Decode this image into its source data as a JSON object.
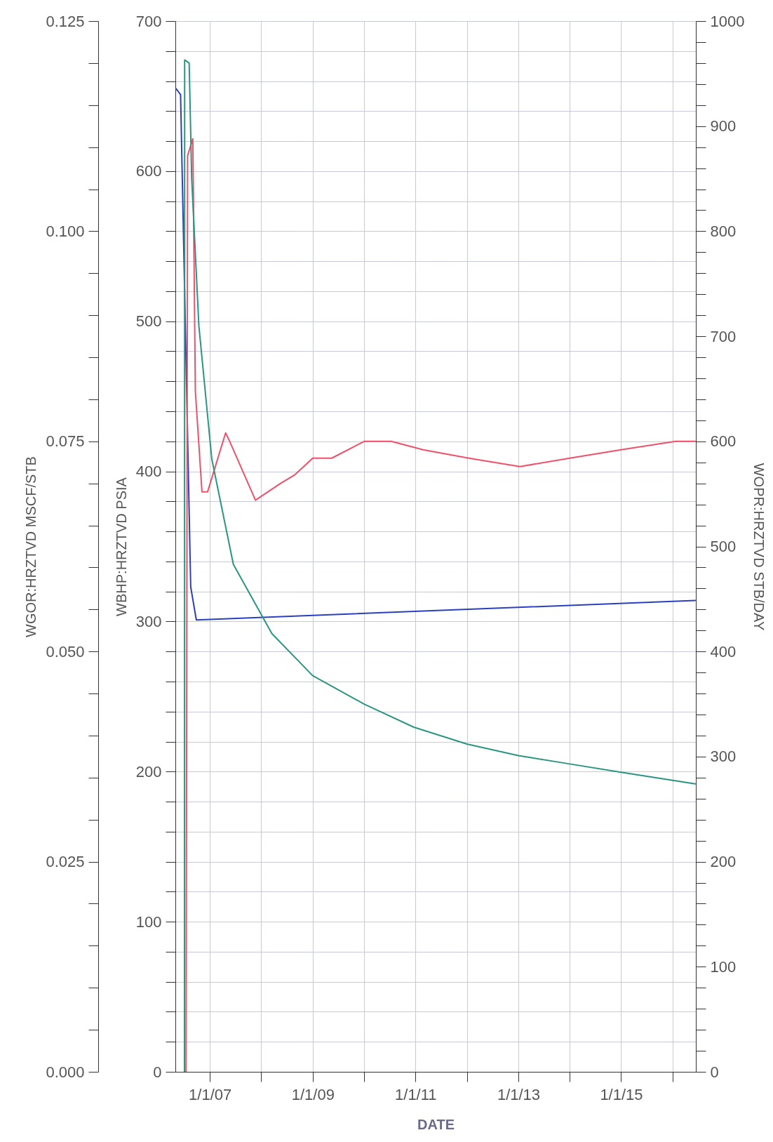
{
  "chart_data": {
    "type": "line",
    "xlabel": "DATE",
    "ylabel": "WBHP:HRZTVD PSIA",
    "y2label": "WGOR:HRZTVD MSCF/STB",
    "y3label": "WOPR:HRZTVD STB/DAY",
    "grid": true,
    "xlim": [
      "2006-05-01",
      "2016-06-15"
    ],
    "xticks": [
      {
        "value": "2007-01-01",
        "label": "1/1/07"
      },
      {
        "value": "2008-01-01",
        "label": null
      },
      {
        "value": "2009-01-01",
        "label": "1/1/09"
      },
      {
        "value": "2010-01-01",
        "label": null
      },
      {
        "value": "2011-01-01",
        "label": "1/1/11"
      },
      {
        "value": "2012-01-01",
        "label": null
      },
      {
        "value": "2013-01-01",
        "label": "1/1/13"
      },
      {
        "value": "2014-01-01",
        "label": null
      },
      {
        "value": "2015-01-01",
        "label": "1/1/15"
      },
      {
        "value": "2016-01-01",
        "label": null
      }
    ],
    "ylim": [
      0,
      700
    ],
    "yticks": [
      0,
      {
        "value": 20,
        "label": null
      },
      {
        "value": 40,
        "label": null
      },
      {
        "value": 60,
        "label": null
      },
      {
        "value": 80,
        "label": null
      },
      100,
      {
        "value": 120,
        "label": null
      },
      {
        "value": 140,
        "label": null
      },
      {
        "value": 160,
        "label": null
      },
      {
        "value": 180,
        "label": null
      },
      200,
      {
        "value": 220,
        "label": null
      },
      {
        "value": 240,
        "label": null
      },
      {
        "value": 260,
        "label": null
      },
      {
        "value": 280,
        "label": null
      },
      300,
      {
        "value": 320,
        "label": null
      },
      {
        "value": 340,
        "label": null
      },
      {
        "value": 360,
        "label": null
      },
      {
        "value": 380,
        "label": null
      },
      400,
      {
        "value": 420,
        "label": null
      },
      {
        "value": 440,
        "label": null
      },
      {
        "value": 460,
        "label": null
      },
      {
        "value": 480,
        "label": null
      },
      500,
      {
        "value": 520,
        "label": null
      },
      {
        "value": 540,
        "label": null
      },
      {
        "value": 560,
        "label": null
      },
      {
        "value": 580,
        "label": null
      },
      600,
      {
        "value": 620,
        "label": null
      },
      {
        "value": 640,
        "label": null
      },
      {
        "value": 660,
        "label": null
      },
      {
        "value": 680,
        "label": null
      },
      700
    ],
    "y2lim": [
      0,
      0.125
    ],
    "y2ticks": [
      {
        "value": 0,
        "label": "0.000"
      },
      {
        "value": 0.005,
        "label": null
      },
      {
        "value": 0.01,
        "label": null
      },
      {
        "value": 0.015,
        "label": null
      },
      {
        "value": 0.02,
        "label": null
      },
      0.025,
      {
        "value": 0.03,
        "label": null
      },
      {
        "value": 0.035,
        "label": null
      },
      {
        "value": 0.04,
        "label": null
      },
      {
        "value": 0.045,
        "label": null
      },
      {
        "value": 0.05,
        "label": "0.050"
      },
      {
        "value": 0.055,
        "label": null
      },
      {
        "value": 0.06,
        "label": null
      },
      {
        "value": 0.065,
        "label": null
      },
      {
        "value": 0.07,
        "label": null
      },
      0.075,
      {
        "value": 0.08,
        "label": null
      },
      {
        "value": 0.085,
        "label": null
      },
      {
        "value": 0.09,
        "label": null
      },
      {
        "value": 0.095,
        "label": null
      },
      {
        "value": 0.1,
        "label": "0.100"
      },
      {
        "value": 0.105,
        "label": null
      },
      {
        "value": 0.11,
        "label": null
      },
      {
        "value": 0.115,
        "label": null
      },
      {
        "value": 0.12,
        "label": null
      },
      0.125
    ],
    "y3lim": [
      0,
      1000
    ],
    "y3ticks": [
      0,
      {
        "value": 20,
        "label": null
      },
      {
        "value": 40,
        "label": null
      },
      {
        "value": 60,
        "label": null
      },
      {
        "value": 80,
        "label": null
      },
      100,
      {
        "value": 120,
        "label": null
      },
      {
        "value": 140,
        "label": null
      },
      {
        "value": 160,
        "label": null
      },
      {
        "value": 180,
        "label": null
      },
      200,
      {
        "value": 220,
        "label": null
      },
      {
        "value": 240,
        "label": null
      },
      {
        "value": 260,
        "label": null
      },
      {
        "value": 280,
        "label": null
      },
      300,
      {
        "value": 320,
        "label": null
      },
      {
        "value": 340,
        "label": null
      },
      {
        "value": 360,
        "label": null
      },
      {
        "value": 380,
        "label": null
      },
      400,
      {
        "value": 420,
        "label": null
      },
      {
        "value": 440,
        "label": null
      },
      {
        "value": 460,
        "label": null
      },
      {
        "value": 480,
        "label": null
      },
      500,
      {
        "value": 520,
        "label": null
      },
      {
        "value": 540,
        "label": null
      },
      {
        "value": 560,
        "label": null
      },
      {
        "value": 580,
        "label": null
      },
      600,
      {
        "value": 620,
        "label": null
      },
      {
        "value": 640,
        "label": null
      },
      {
        "value": 660,
        "label": null
      },
      {
        "value": 680,
        "label": null
      },
      700,
      {
        "value": 720,
        "label": null
      },
      {
        "value": 740,
        "label": null
      },
      {
        "value": 760,
        "label": null
      },
      {
        "value": 780,
        "label": null
      },
      800,
      {
        "value": 820,
        "label": null
      },
      {
        "value": 840,
        "label": null
      },
      {
        "value": 860,
        "label": null
      },
      {
        "value": 880,
        "label": null
      },
      900,
      {
        "value": 920,
        "label": null
      },
      {
        "value": 940,
        "label": null
      },
      {
        "value": 960,
        "label": null
      },
      {
        "value": 980,
        "label": null
      },
      1000
    ],
    "series": [
      {
        "color": "#2b40c0",
        "x": [
          "2006-05-05",
          "2006-06-07",
          "2006-08-18",
          "2006-09-27",
          "2016-06-10"
        ],
        "values": [
          655,
          651,
          323,
          301,
          314
        ]
      },
      {
        "color": "#f0506a",
        "axis": "y2",
        "x": [
          "2006-07-16",
          "2006-07-27",
          "2006-09-02",
          "2006-09-20",
          "2006-11-06",
          "2006-12-16",
          "2007-04-23",
          "2007-05-22",
          "2007-11-21",
          "2008-05-18",
          "2008-08-25",
          "2009-01-01",
          "2009-05-16",
          "2010-01-01",
          "2010-07-13",
          "2011-02-24",
          "2012-01-15",
          "2013-01-12",
          "2014-01-01",
          "2015-01-01",
          "2016-01-23",
          "2016-06-10"
        ],
        "values": [
          0,
          0.109,
          0.111,
          0.081,
          0.069,
          0.069,
          0.076,
          0.075,
          0.068,
          0.07,
          0.071,
          0.073,
          0.073,
          0.075,
          0.075,
          0.074,
          0.073,
          0.072,
          0.073,
          0.074,
          0.075,
          0.075
        ]
      },
      {
        "color": "#2a9580",
        "axis": "y3",
        "x": [
          "2006-07-05",
          "2006-07-06",
          "2006-08-07",
          "2006-08-25",
          "2006-10-15",
          "2007-01-15",
          "2007-06-17",
          "2008-03-17",
          "2009-01-01",
          "2010-01-01",
          "2010-12-20",
          "2012-01-01",
          "2013-01-01",
          "2014-01-01",
          "2015-01-01",
          "2016-06-10"
        ],
        "values": [
          0,
          963,
          960,
          850,
          710,
          583,
          483,
          417,
          377,
          350,
          328,
          312,
          301,
          293,
          285,
          274
        ]
      }
    ]
  }
}
